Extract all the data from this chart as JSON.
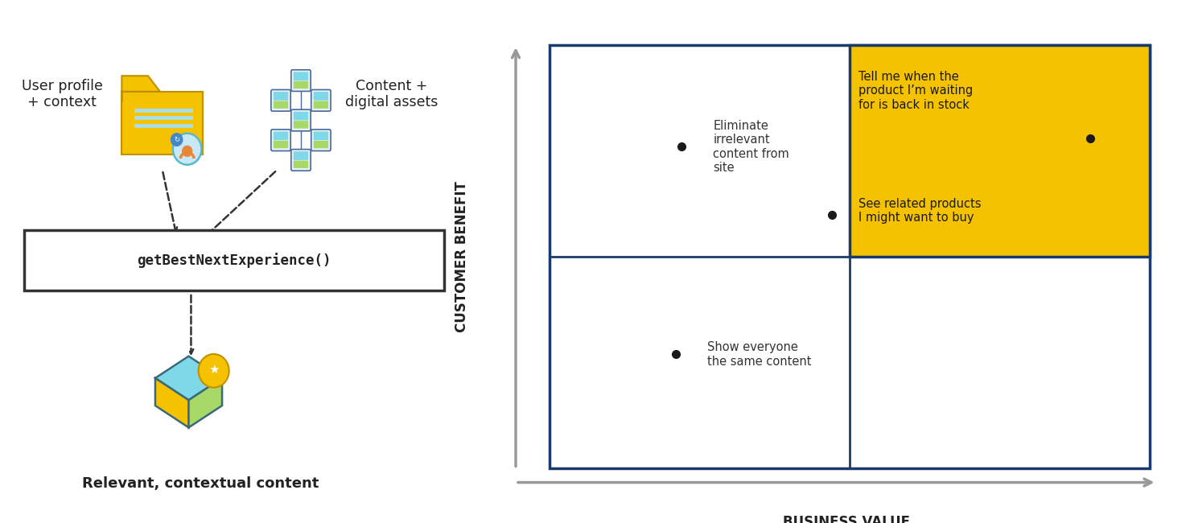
{
  "bg_color": "#ffffff",
  "left_panel": {
    "user_profile_label": "User profile\n+ context",
    "content_label": "Content +\ndigital assets",
    "function_label": "getBestNextExperience()",
    "output_label": "Relevant, contextual content",
    "text_color": "#222222"
  },
  "right_panel": {
    "xlabel": "BUSINESS VALUE",
    "ylabel": "CUSTOMER BENEFIT",
    "border_color": "#1a3a6b",
    "highlight_color": "#F5C200",
    "highlight_text1": "Tell me when the\nproduct I’m waiting\nfor is back in stock",
    "highlight_text2": "See related products\nI might want to buy",
    "label_eliminate": "Eliminate\nirrelevant\ncontent from\nsite",
    "label_show": "Show everyone\nthe same content",
    "point_color": "#1a1a1a"
  }
}
